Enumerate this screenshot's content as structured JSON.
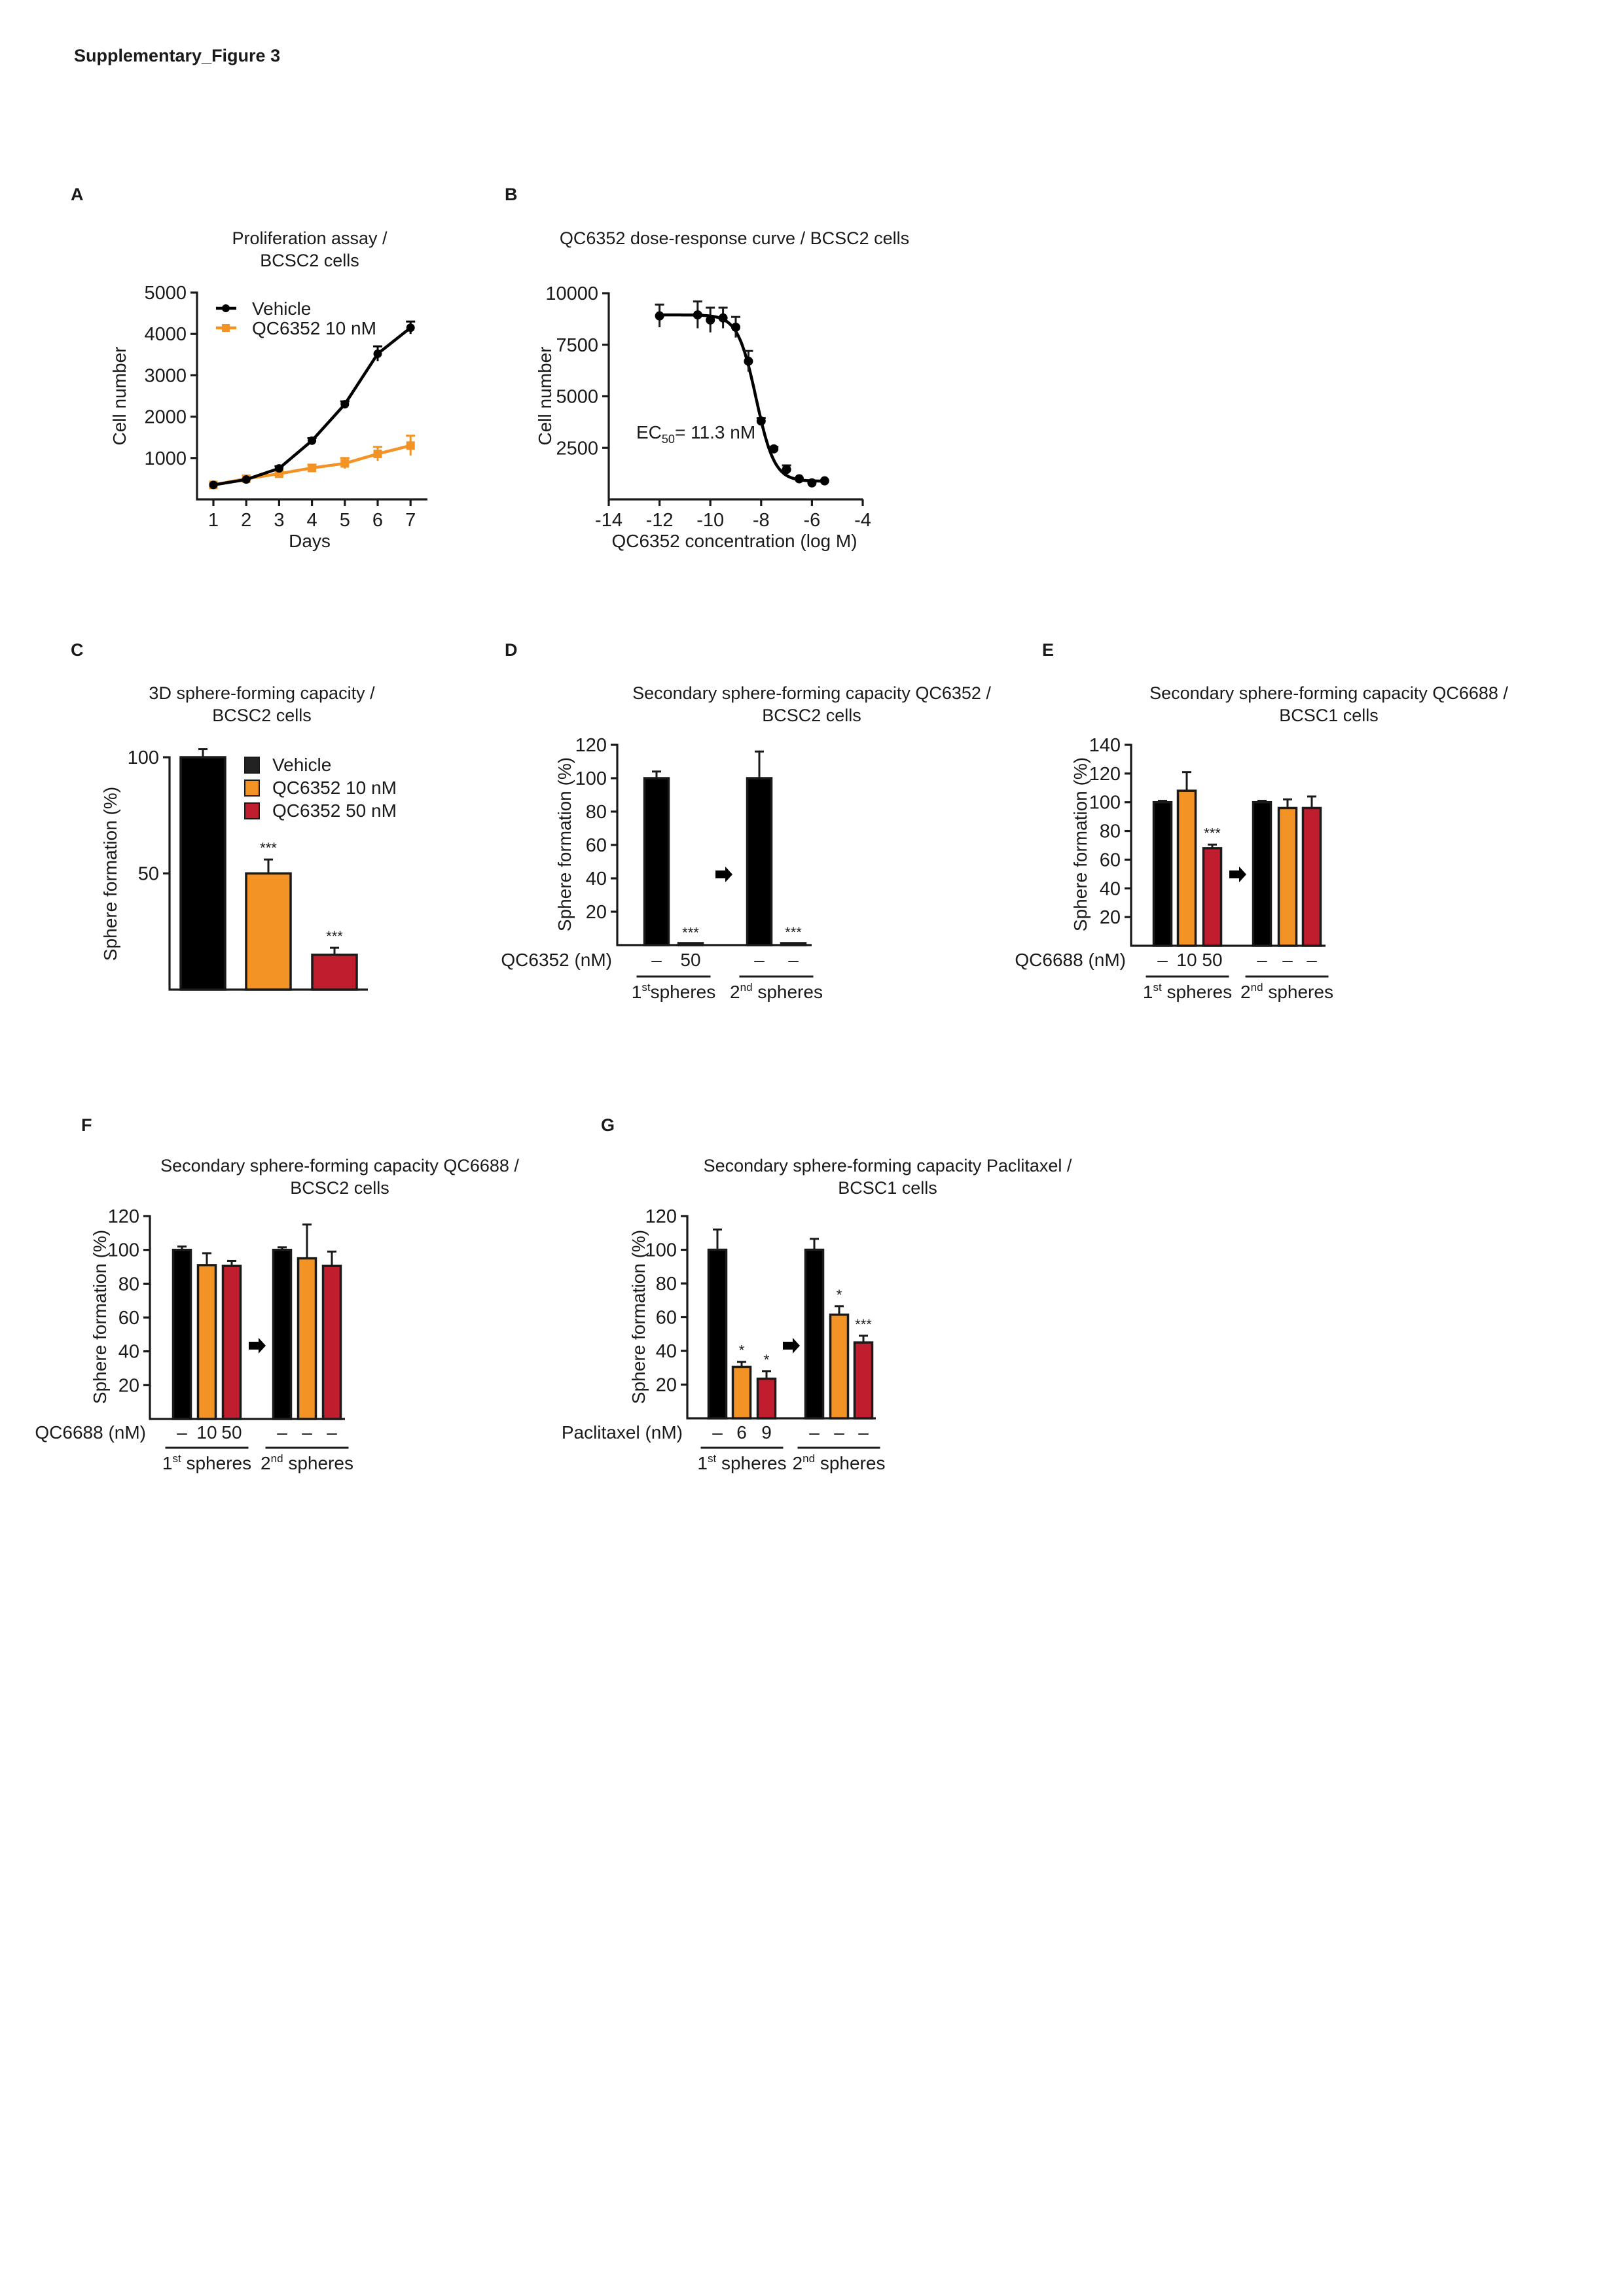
{
  "header": {
    "title": "Supplementary_Figure 3"
  },
  "colors": {
    "vehicle": "#000000",
    "low_dose": "#f39325",
    "high_dose": "#c01e2e",
    "axis": "#1a1a1a"
  },
  "chart_data": [
    {
      "panel": "A",
      "type": "line",
      "title": [
        "Proliferation assay /",
        "BCSC2 cells"
      ],
      "xlabel": "Days",
      "ylabel": "Cell number",
      "x": [
        1,
        2,
        3,
        4,
        5,
        6,
        7
      ],
      "yticks": [
        1000,
        2000,
        3000,
        4000,
        5000
      ],
      "ylim": [
        0,
        5000
      ],
      "legend_position": "top-left",
      "series": [
        {
          "name": "Vehicle",
          "marker": "circle",
          "color": "#000000",
          "values": [
            350,
            480,
            750,
            1420,
            2300,
            3520,
            4150
          ],
          "errors": [
            30,
            40,
            50,
            60,
            70,
            180,
            150
          ]
        },
        {
          "name": "QC6352 10 nM",
          "marker": "square",
          "color": "#f39325",
          "values": [
            350,
            500,
            620,
            760,
            870,
            1100,
            1300
          ],
          "errors": [
            30,
            40,
            60,
            80,
            130,
            170,
            240
          ]
        }
      ]
    },
    {
      "panel": "B",
      "type": "scatter",
      "title": [
        "QC6352 dose-response curve / BCSC2 cells"
      ],
      "xlabel": "QC6352 concentration (log M)",
      "ylabel": "Cell number",
      "xticks": [
        -14,
        -12,
        -10,
        -8,
        -6,
        -4
      ],
      "xlim": [
        -14,
        -4
      ],
      "yticks": [
        2500,
        5000,
        7500,
        10000
      ],
      "ylim": [
        0,
        10000
      ],
      "annotation": {
        "prefix": "EC",
        "subscript": "50",
        "text": "= 11.3 nM"
      },
      "series": [
        {
          "x": [
            -12,
            -10.5,
            -10,
            -9.5,
            -9,
            -8.5,
            -8,
            -7.5,
            -7,
            -6.5,
            -6,
            -5.5
          ],
          "values": [
            8900,
            8950,
            8700,
            8800,
            8350,
            6700,
            3800,
            2450,
            1450,
            1000,
            800,
            900
          ],
          "errors": [
            550,
            650,
            600,
            500,
            500,
            500,
            150,
            100,
            200,
            50,
            50,
            50
          ]
        }
      ]
    },
    {
      "panel": "C",
      "type": "bar",
      "title": [
        "3D sphere-forming capacity /",
        "BCSC2 cells"
      ],
      "ylabel": "Sphere formation (%)",
      "yticks": [
        50,
        100
      ],
      "ylim": [
        0,
        100
      ],
      "legend_position": "top-right",
      "legend": [
        {
          "label": "Vehicle",
          "color": "#222222"
        },
        {
          "label": "QC6352 10 nM",
          "color": "#f39325"
        },
        {
          "label": "QC6352 50 nM",
          "color": "#c01e2e"
        }
      ],
      "bars": [
        {
          "value": 100,
          "error": 3.5,
          "color": "#000000",
          "sig": ""
        },
        {
          "value": 50,
          "error": 6,
          "color": "#f39325",
          "sig": "***"
        },
        {
          "value": 15,
          "error": 3,
          "color": "#c01e2e",
          "sig": "***"
        }
      ]
    },
    {
      "panel": "D",
      "type": "bar",
      "title": [
        "Secondary sphere-forming capacity QC6352 /",
        "BCSC2 cells"
      ],
      "ylabel": "Sphere formation (%)",
      "yticks": [
        20,
        40,
        60,
        80,
        100,
        120
      ],
      "ylim": [
        0,
        120
      ],
      "treatment_label": "QC6352 (nM)",
      "groups": [
        {
          "number": "1",
          "sup": "st",
          "text": "spheres"
        },
        {
          "number": "2",
          "sup": "nd",
          "text": " spheres"
        }
      ],
      "bars": [
        {
          "value": 100,
          "error": 4,
          "color": "#000000",
          "sig": "",
          "treatment": "–"
        },
        {
          "value": 0.5,
          "error": 0,
          "color": "#000000",
          "sig": "***",
          "treatment": "50"
        },
        {
          "value": 100,
          "error": 16,
          "color": "#000000",
          "sig": "",
          "treatment": "–"
        },
        {
          "value": 0.8,
          "error": 0,
          "color": "#000000",
          "sig": "***",
          "treatment": "–"
        }
      ]
    },
    {
      "panel": "E",
      "type": "bar",
      "title": [
        "Secondary sphere-forming capacity QC6688 /",
        "BCSC1 cells"
      ],
      "ylabel": "Sphere formation (%)",
      "yticks": [
        20,
        40,
        60,
        80,
        100,
        120,
        140
      ],
      "ylim": [
        0,
        140
      ],
      "treatment_label": "QC6688 (nM)",
      "groups": [
        {
          "number": "1",
          "sup": "st",
          "text": " spheres"
        },
        {
          "number": "2",
          "sup": "nd",
          "text": " spheres"
        }
      ],
      "bars": [
        {
          "value": 100,
          "error": 1,
          "color": "#000000",
          "sig": "",
          "treatment": "–"
        },
        {
          "value": 108,
          "error": 13,
          "color": "#f39325",
          "sig": "",
          "treatment": "10"
        },
        {
          "value": 68,
          "error": 2.5,
          "color": "#c01e2e",
          "sig": "***",
          "treatment": "50"
        },
        {
          "value": 100,
          "error": 1,
          "color": "#000000",
          "sig": "",
          "treatment": "–"
        },
        {
          "value": 96,
          "error": 6,
          "color": "#f39325",
          "sig": "",
          "treatment": "–"
        },
        {
          "value": 96,
          "error": 8,
          "color": "#c01e2e",
          "sig": "",
          "treatment": "–"
        }
      ]
    },
    {
      "panel": "F",
      "type": "bar",
      "title": [
        "Secondary sphere-forming capacity QC6688 /",
        "BCSC2 cells"
      ],
      "ylabel": "Sphere formation (%)",
      "yticks": [
        20,
        40,
        60,
        80,
        100,
        120
      ],
      "ylim": [
        0,
        120
      ],
      "treatment_label": "QC6688 (nM)",
      "groups": [
        {
          "number": "1",
          "sup": "st",
          "text": " spheres"
        },
        {
          "number": "2",
          "sup": "nd",
          "text": " spheres"
        }
      ],
      "bars": [
        {
          "value": 100,
          "error": 2,
          "color": "#000000",
          "sig": "",
          "treatment": "–"
        },
        {
          "value": 91,
          "error": 7,
          "color": "#f39325",
          "sig": "",
          "treatment": "10"
        },
        {
          "value": 90.5,
          "error": 3,
          "color": "#c01e2e",
          "sig": "",
          "treatment": "50"
        },
        {
          "value": 100,
          "error": 1.5,
          "color": "#000000",
          "sig": "",
          "treatment": "–"
        },
        {
          "value": 95,
          "error": 20,
          "color": "#f39325",
          "sig": "",
          "treatment": "–"
        },
        {
          "value": 90.5,
          "error": 8.5,
          "color": "#c01e2e",
          "sig": "",
          "treatment": "–"
        }
      ]
    },
    {
      "panel": "G",
      "type": "bar",
      "title": [
        "Secondary sphere-forming capacity Paclitaxel /",
        "BCSC1 cells"
      ],
      "ylabel": "Sphere formation (%)",
      "yticks": [
        20,
        40,
        60,
        80,
        100,
        120
      ],
      "ylim": [
        0,
        120
      ],
      "treatment_label": "Paclitaxel (nM)",
      "groups": [
        {
          "number": "1",
          "sup": "st",
          "text": " spheres"
        },
        {
          "number": "2",
          "sup": "nd",
          "text": " spheres"
        }
      ],
      "bars": [
        {
          "value": 100,
          "error": 12,
          "color": "#000000",
          "sig": "",
          "treatment": "–"
        },
        {
          "value": 30.5,
          "error": 3,
          "color": "#f39325",
          "sig": "*",
          "treatment": "6"
        },
        {
          "value": 23.5,
          "error": 4.5,
          "color": "#c01e2e",
          "sig": "*",
          "treatment": "9"
        },
        {
          "value": 100,
          "error": 6.5,
          "color": "#000000",
          "sig": "",
          "treatment": "–"
        },
        {
          "value": 61.5,
          "error": 5,
          "color": "#f39325",
          "sig": "*",
          "treatment": "–"
        },
        {
          "value": 45,
          "error": 4,
          "color": "#c01e2e",
          "sig": "***",
          "treatment": "–"
        }
      ]
    }
  ]
}
